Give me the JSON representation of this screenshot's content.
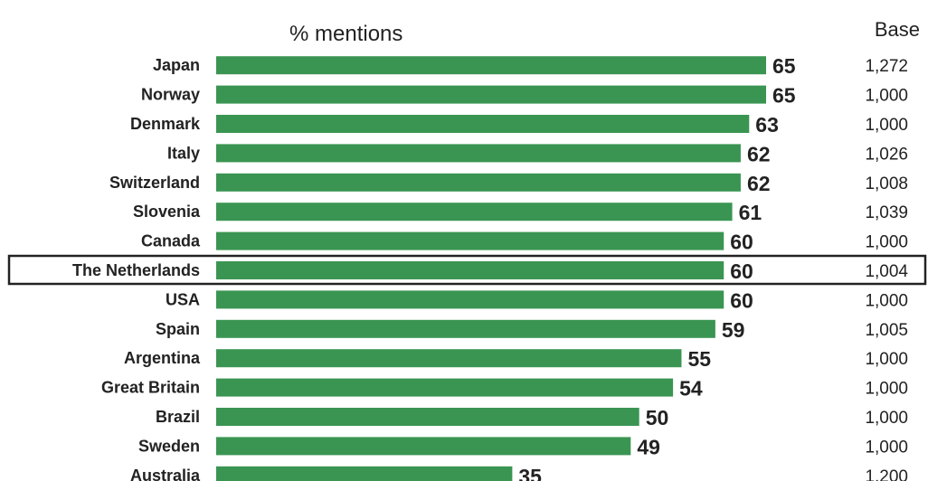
{
  "chart_data": {
    "type": "bar",
    "orientation": "horizontal",
    "xlabel": "% mentions",
    "xlim": [
      0,
      65
    ],
    "bar_color": "#3a9552",
    "highlight_color": "#222222",
    "highlighted_category": "The Netherlands",
    "base_header": "Base",
    "categories": [
      "Japan",
      "Norway",
      "Denmark",
      "Italy",
      "Switzerland",
      "Slovenia",
      "Canada",
      "The Netherlands",
      "USA",
      "Spain",
      "Argentina",
      "Great Britain",
      "Brazil",
      "Sweden",
      "Australia"
    ],
    "values": [
      65,
      65,
      63,
      62,
      62,
      61,
      60,
      60,
      60,
      59,
      55,
      54,
      50,
      49,
      35
    ],
    "bases": [
      "1,272",
      "1,000",
      "1,000",
      "1,026",
      "1,008",
      "1,039",
      "1,000",
      "1,004",
      "1,000",
      "1,005",
      "1,000",
      "1,000",
      "1,000",
      "1,000",
      "1,200"
    ]
  }
}
